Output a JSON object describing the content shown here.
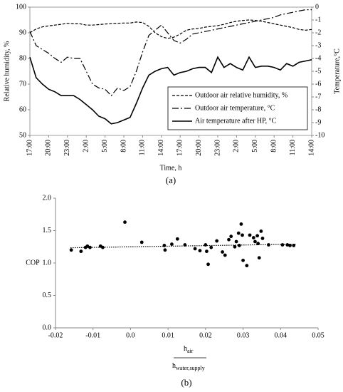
{
  "chart_data": [
    {
      "type": "line",
      "caption": "(a)",
      "x_label": "Time, h",
      "y_label": "Relative humidity, %",
      "y2_label": "Temperature,°C",
      "categories": [
        "17:00",
        null,
        null,
        "20:00",
        null,
        null,
        "23:00",
        null,
        null,
        "2:00",
        null,
        null,
        "5:00",
        null,
        null,
        "8:00",
        null,
        null,
        "11:00",
        null,
        null,
        "14:00",
        null,
        null,
        "17:00",
        null,
        null,
        "20:00",
        null,
        null,
        "23:00",
        null,
        null,
        "2:00",
        null,
        null,
        "5:00",
        null,
        null,
        "8:00",
        null,
        null,
        "11:00",
        null,
        null,
        "14:00"
      ],
      "ylim": [
        50,
        100
      ],
      "yticks": [
        50,
        60,
        70,
        80,
        90,
        100
      ],
      "y2lim": [
        -10,
        0
      ],
      "y2ticks": [
        -10,
        -9,
        -8,
        -7,
        -6,
        -5,
        -4,
        -3,
        -2,
        -1,
        0
      ],
      "legend": "lower right",
      "series": [
        {
          "name": "Outdoor air relative humidity, %",
          "color": "#000000",
          "dash": "dashed",
          "values": [
            90,
            91.5,
            92.3,
            92.7,
            93,
            93.3,
            93.7,
            93.5,
            93.5,
            93,
            93,
            93.2,
            93.4,
            93.6,
            93.7,
            93.8,
            93.8,
            94.2,
            94,
            92.5,
            90,
            88.5,
            87.8,
            88.3,
            89.5,
            91,
            91.5,
            91.7,
            92.2,
            92.5,
            92.8,
            93.3,
            94,
            94.5,
            94.8,
            95,
            94.8,
            94.5,
            94,
            93.5,
            93,
            92.5,
            92,
            91.3,
            91,
            91.3
          ]
        },
        {
          "name": "Outdoor air temperature, °C",
          "color": "#000000",
          "dash": "dashdot",
          "axis": "y2",
          "values": [
            -1.9,
            -3,
            -3.3,
            -3.6,
            -4,
            -4.3,
            -3.9,
            -4,
            -4,
            -5,
            -6,
            -6.3,
            -6.4,
            -6.9,
            -6.3,
            -6.5,
            -6.2,
            -5,
            -3.5,
            -2.2,
            -1.8,
            -1.4,
            -2,
            -2.6,
            -2.8,
            -2.5,
            -2.1,
            -2,
            -1.9,
            -1.8,
            -1.7,
            -1.6,
            -1.5,
            -1.4,
            -1.3,
            -1.2,
            -1.1,
            -1,
            -0.9,
            -0.8,
            -0.6,
            -0.5,
            -0.4,
            -0.3,
            -0.2,
            -0.2
          ]
        },
        {
          "name": "Air temperature after HP, °C",
          "color": "#000000",
          "dash": "solid",
          "axis": "y2",
          "values": [
            -3.9,
            -5.5,
            -6,
            -6.4,
            -6.6,
            -6.9,
            -6.9,
            -6.9,
            -7.2,
            -7.6,
            -8,
            -8.5,
            -8.7,
            -9.1,
            -9,
            -8.8,
            -8.6,
            -7.5,
            -6.3,
            -5.3,
            -5,
            -4.8,
            -4.7,
            -5.3,
            -5.1,
            -5,
            -4.8,
            -4.7,
            -4.7,
            -5.1,
            -3.9,
            -4.7,
            -4.4,
            -4.7,
            -4.9,
            -3.9,
            -4.7,
            -4.6,
            -4.6,
            -4.7,
            -4.9,
            -4.4,
            -4.6,
            -4.3,
            -4.2,
            -4.1
          ]
        }
      ]
    },
    {
      "type": "scatter",
      "caption": "(b)",
      "y_label": "COP",
      "x_label": {
        "numerator": "h",
        "numerator_sub": "air",
        "denominator": "h",
        "denominator_sub": "water,supply"
      },
      "xlim": [
        -0.02,
        0.05
      ],
      "xticks": [
        -0.02,
        -0.01,
        {
          "value": 0,
          "label": "0.0"
        },
        0.01,
        0.02,
        0.03,
        0.04,
        0.05
      ],
      "ylim": [
        0,
        2
      ],
      "yticks": [
        {
          "value": 0,
          "label": "0.0"
        },
        0.5,
        {
          "value": 1,
          "label": "1.0"
        },
        1.5,
        {
          "value": 2,
          "label": "2.0"
        }
      ],
      "color": "#000000",
      "x": [
        -0.0158,
        -0.0132,
        -0.012,
        -0.0115,
        -0.0108,
        -0.008,
        -0.0074,
        -0.0015,
        0.003,
        0.009,
        0.0092,
        0.011,
        0.0125,
        0.0145,
        0.0172,
        0.0185,
        0.02,
        0.0203,
        0.0207,
        0.0215,
        0.023,
        0.0245,
        0.0252,
        0.0262,
        0.0268,
        0.0278,
        0.0282,
        0.0288,
        0.029,
        0.0295,
        0.0298,
        0.03,
        0.031,
        0.0318,
        0.0328,
        0.0332,
        0.0338,
        0.034,
        0.0343,
        0.0348,
        0.0352,
        0.0368,
        0.0405,
        0.0418,
        0.0425,
        0.0435
      ],
      "values": [
        1.2,
        1.18,
        1.24,
        1.26,
        1.24,
        1.26,
        1.24,
        1.63,
        1.32,
        1.27,
        1.2,
        1.29,
        1.37,
        1.28,
        1.22,
        1.19,
        1.28,
        1.18,
        0.98,
        1.24,
        1.34,
        1.17,
        1.12,
        1.36,
        1.41,
        1.25,
        1.33,
        1.46,
        1.27,
        1.6,
        1.43,
        1.04,
        0.96,
        1.43,
        1.39,
        1.33,
        1.42,
        1.3,
        1.08,
        1.49,
        1.38,
        1.28,
        1.28,
        1.28,
        1.27,
        1.27
      ],
      "trendline": {
        "x": [
          -0.016,
          0.044
        ],
        "values": [
          1.235,
          1.29
        ]
      }
    }
  ]
}
